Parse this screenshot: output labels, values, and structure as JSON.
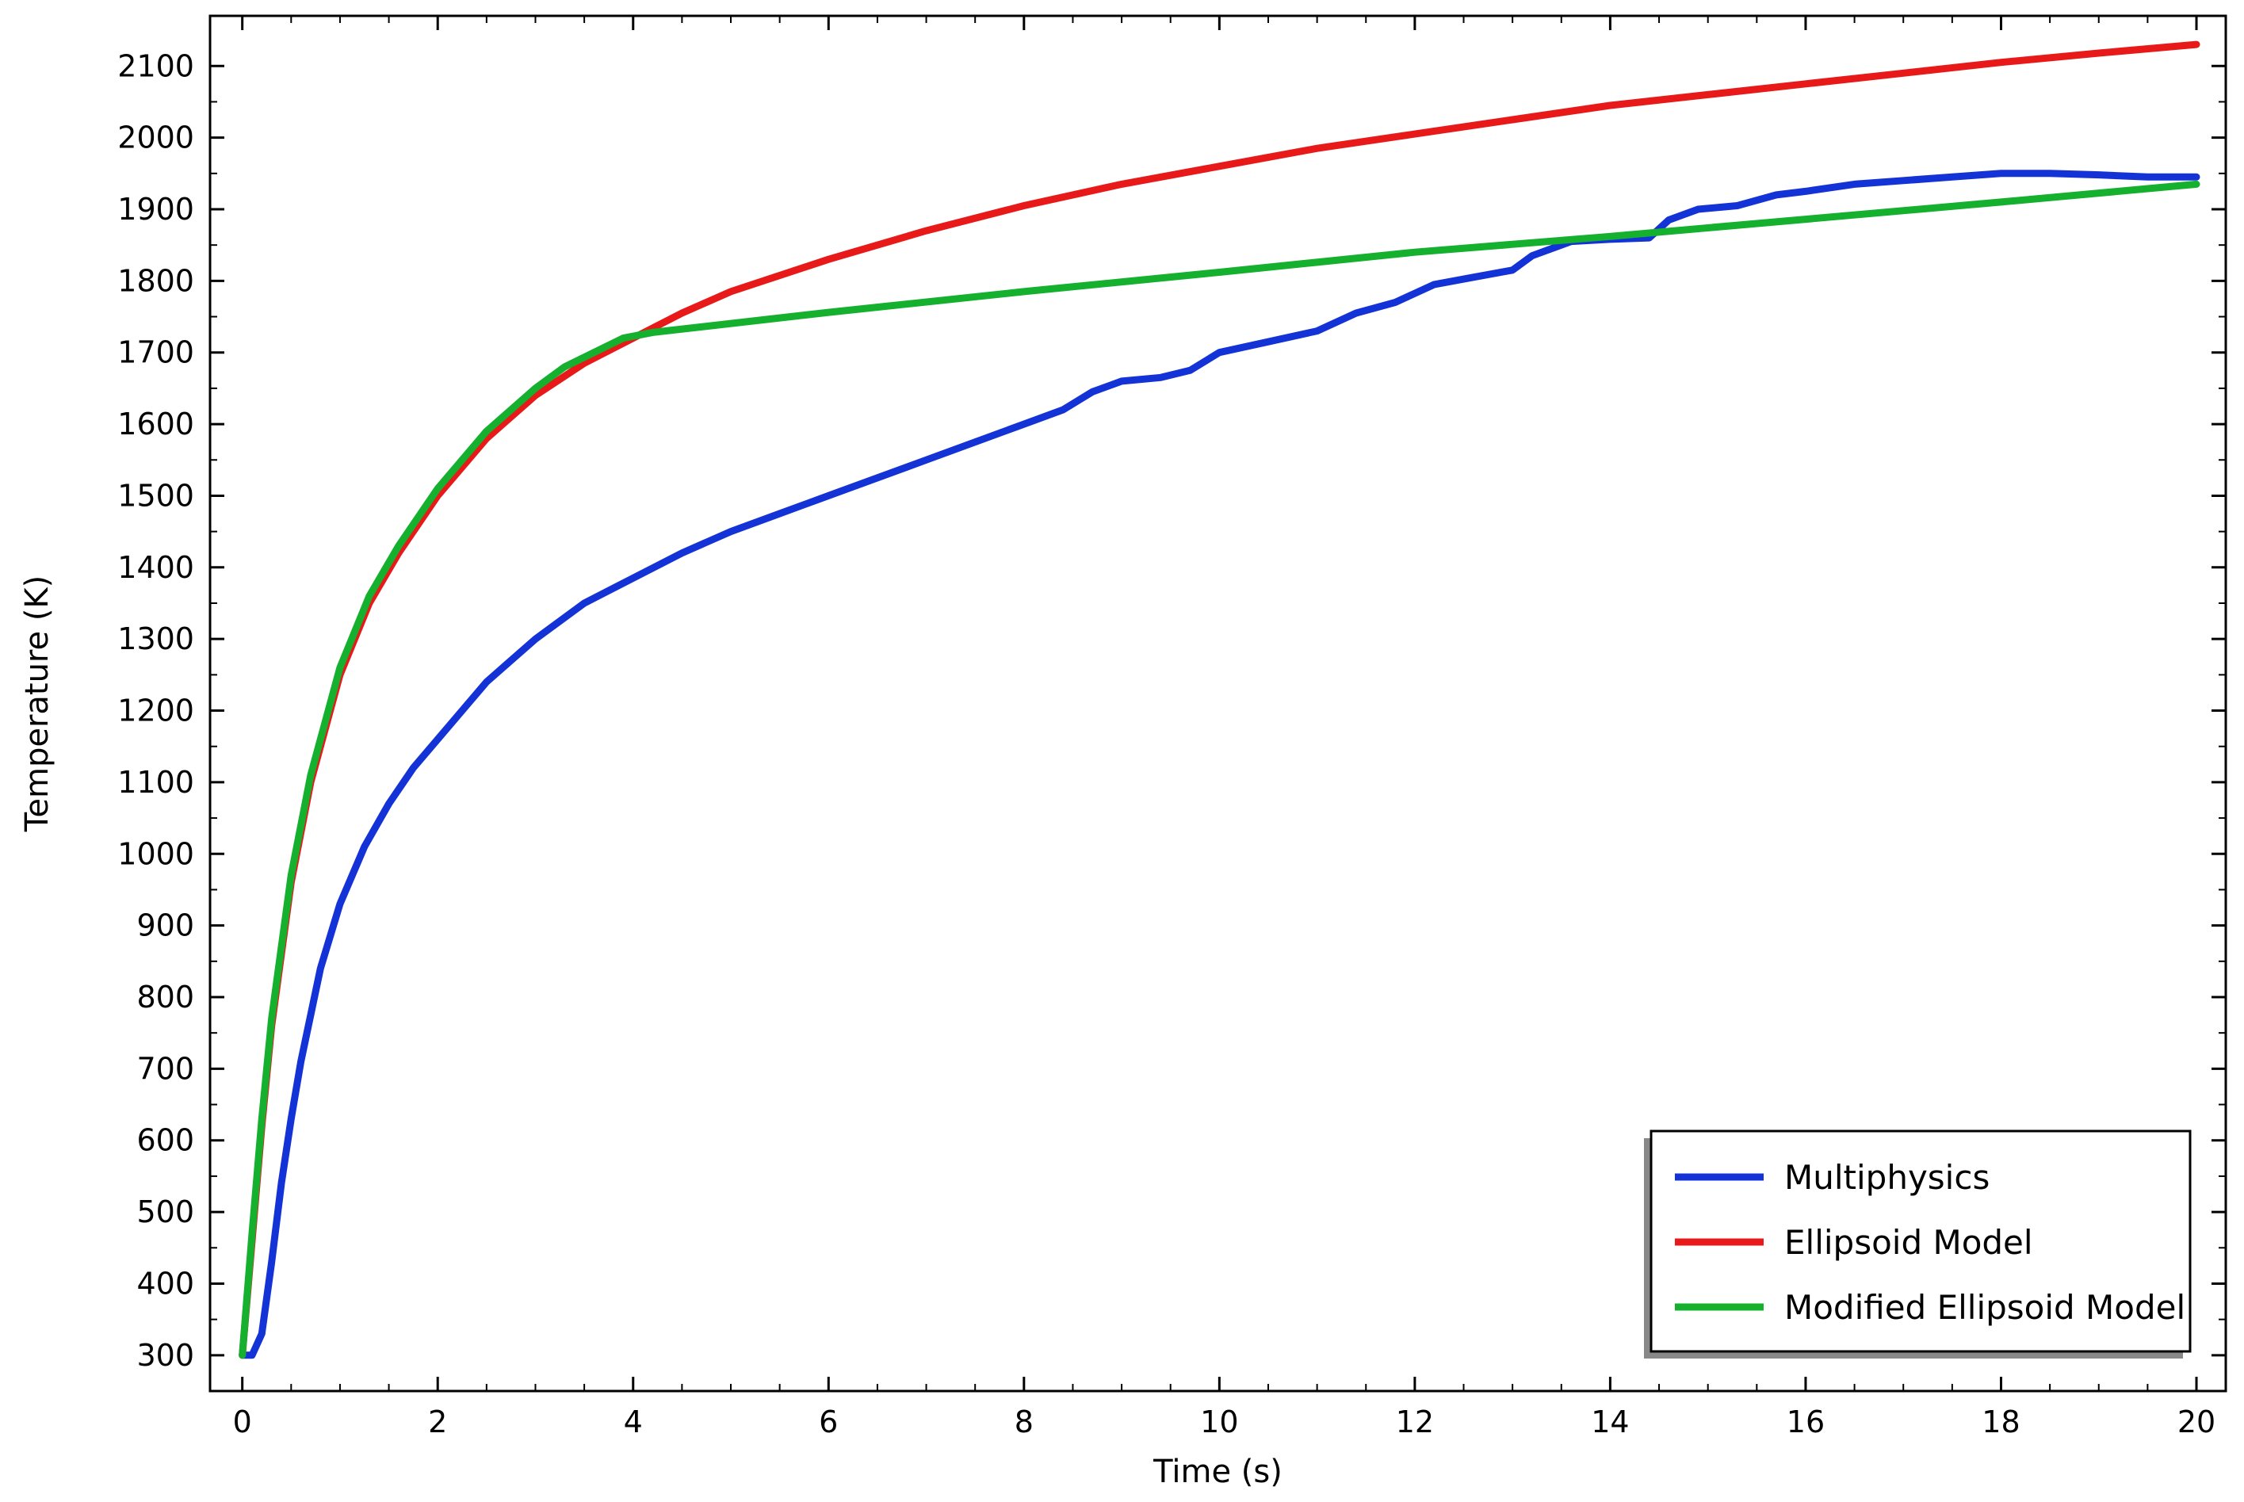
{
  "chart_data": {
    "type": "line",
    "title": "",
    "xlabel": "Time (s)",
    "ylabel": "Temperature (K)",
    "xlim": [
      -0.33,
      20.3
    ],
    "ylim": [
      250,
      2170
    ],
    "x_ticks": [
      0,
      2,
      4,
      6,
      8,
      10,
      12,
      14,
      16,
      18,
      20
    ],
    "y_ticks": [
      300,
      400,
      500,
      600,
      700,
      800,
      900,
      1000,
      1100,
      1200,
      1300,
      1400,
      1500,
      1600,
      1700,
      1800,
      1900,
      2000,
      2100
    ],
    "grid": false,
    "legend_position": "bottom-right",
    "series": [
      {
        "name": "Multiphysics",
        "color": "#1433d6",
        "x": [
          0,
          0.1,
          0.2,
          0.3,
          0.4,
          0.5,
          0.6,
          0.8,
          1.0,
          1.25,
          1.5,
          1.75,
          2.0,
          2.5,
          3.0,
          3.5,
          4.0,
          4.5,
          5.0,
          5.5,
          6.0,
          6.5,
          7.0,
          7.5,
          8.0,
          8.4,
          8.7,
          9.0,
          9.4,
          9.7,
          10.0,
          10.5,
          11.0,
          11.4,
          11.8,
          12.2,
          12.6,
          13.0,
          13.2,
          13.6,
          14.0,
          14.4,
          14.6,
          14.9,
          15.3,
          15.7,
          16.0,
          16.5,
          17.0,
          17.5,
          18.0,
          18.5,
          19.0,
          19.5,
          20.0
        ],
        "y": [
          300,
          300,
          330,
          430,
          540,
          630,
          710,
          840,
          930,
          1010,
          1070,
          1120,
          1160,
          1240,
          1300,
          1350,
          1385,
          1420,
          1450,
          1475,
          1500,
          1525,
          1550,
          1575,
          1600,
          1620,
          1645,
          1660,
          1665,
          1675,
          1700,
          1715,
          1730,
          1755,
          1770,
          1795,
          1805,
          1815,
          1835,
          1855,
          1858,
          1860,
          1885,
          1900,
          1905,
          1920,
          1925,
          1935,
          1940,
          1945,
          1950,
          1950,
          1948,
          1945,
          1945
        ]
      },
      {
        "name": "Ellipsoid Model",
        "color": "#e81919",
        "x": [
          0,
          0.1,
          0.2,
          0.3,
          0.5,
          0.7,
          1.0,
          1.3,
          1.6,
          2.0,
          2.5,
          3.0,
          3.5,
          4.0,
          4.5,
          5.0,
          6.0,
          7.0,
          8.0,
          9.0,
          10.0,
          11.0,
          12.0,
          13.0,
          14.0,
          15.0,
          16.0,
          17.0,
          18.0,
          19.0,
          20.0
        ],
        "y": [
          300,
          460,
          620,
          760,
          960,
          1100,
          1250,
          1350,
          1420,
          1500,
          1580,
          1640,
          1685,
          1720,
          1755,
          1785,
          1830,
          1870,
          1905,
          1935,
          1960,
          1985,
          2005,
          2025,
          2045,
          2060,
          2075,
          2090,
          2105,
          2118,
          2130
        ]
      },
      {
        "name": "Modified Ellipsoid Model",
        "color": "#14b02e",
        "x": [
          0,
          0.1,
          0.2,
          0.3,
          0.5,
          0.7,
          1.0,
          1.3,
          1.6,
          2.0,
          2.5,
          3.0,
          3.3,
          3.6,
          3.9,
          4.2,
          6.0,
          8.0,
          10.0,
          12.0,
          14.0,
          16.0,
          18.0,
          20.0
        ],
        "y": [
          300,
          470,
          630,
          770,
          970,
          1110,
          1260,
          1360,
          1430,
          1510,
          1590,
          1650,
          1680,
          1700,
          1720,
          1728,
          1756,
          1785,
          1812,
          1840,
          1862,
          1886,
          1910,
          1935
        ]
      }
    ]
  }
}
